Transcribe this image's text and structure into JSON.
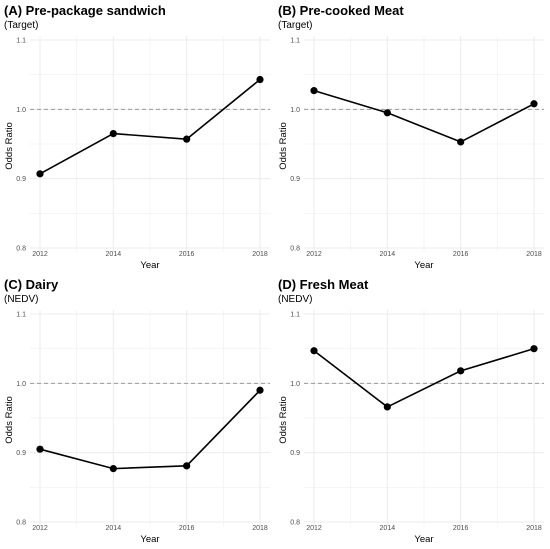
{
  "chart_data": [
    {
      "type": "line",
      "title": "(A) Pre-package sandwich",
      "subtitle": "(Target)",
      "xlabel": "Year",
      "ylabel": "Odds Ratio",
      "x": [
        2012,
        2014,
        2016,
        2018
      ],
      "values": [
        0.907,
        0.965,
        0.957,
        1.043
      ],
      "ylim": [
        0.8,
        1.1
      ],
      "yticks": [
        "0.8",
        "0.9",
        "1.0",
        "1.1"
      ],
      "xticks": [
        "2012",
        "2014",
        "2016",
        "2018"
      ],
      "reference_line": 1.0,
      "grid": true
    },
    {
      "type": "line",
      "title": "(B) Pre-cooked Meat",
      "subtitle": "(Target)",
      "xlabel": "Year",
      "ylabel": "Odds Ratio",
      "x": [
        2012,
        2014,
        2016,
        2018
      ],
      "values": [
        1.027,
        0.995,
        0.953,
        1.008
      ],
      "ylim": [
        0.8,
        1.1
      ],
      "yticks": [
        "0.8",
        "0.9",
        "1.0",
        "1.1"
      ],
      "xticks": [
        "2012",
        "2014",
        "2016",
        "2018"
      ],
      "reference_line": 1.0,
      "grid": true
    },
    {
      "type": "line",
      "title": "(C) Dairy",
      "subtitle": "(NEDV)",
      "xlabel": "Year",
      "ylabel": "Odds Ratio",
      "x": [
        2012,
        2014,
        2016,
        2018
      ],
      "values": [
        0.905,
        0.877,
        0.881,
        0.99
      ],
      "ylim": [
        0.8,
        1.1
      ],
      "yticks": [
        "0.8",
        "0.9",
        "1.0",
        "1.1"
      ],
      "xticks": [
        "2012",
        "2014",
        "2016",
        "2018"
      ],
      "reference_line": 1.0,
      "grid": true
    },
    {
      "type": "line",
      "title": "(D) Fresh Meat",
      "subtitle": "(NEDV)",
      "xlabel": "Year",
      "ylabel": "Odds Ratio",
      "x": [
        2012,
        2014,
        2016,
        2018
      ],
      "values": [
        1.047,
        0.966,
        1.018,
        1.05
      ],
      "ylim": [
        0.8,
        1.1
      ],
      "yticks": [
        "0.8",
        "0.9",
        "1.0",
        "1.1"
      ],
      "xticks": [
        "2012",
        "2014",
        "2016",
        "2018"
      ],
      "reference_line": 1.0,
      "grid": true
    }
  ],
  "colors": {
    "line": "#000000",
    "grid": "#ebebeb",
    "reference": "#9a9a9a",
    "tick_text": "#4d4d4d"
  }
}
